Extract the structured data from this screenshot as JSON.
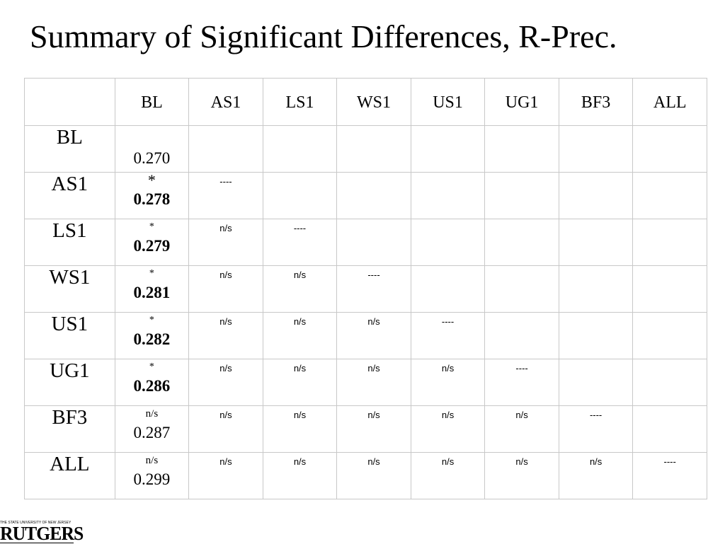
{
  "title": "Summary of Significant Differences, R-Prec.",
  "columns": [
    "BL",
    "AS1",
    "LS1",
    "WS1",
    "US1",
    "UG1",
    "BF3",
    "ALL"
  ],
  "rows": [
    {
      "label": "BL",
      "bl_mark": "",
      "bl_mark_style": "none",
      "bl_value": "0.270",
      "bl_bold": false,
      "pairs": []
    },
    {
      "label": "AS1",
      "bl_mark": "*",
      "bl_mark_style": "big",
      "bl_value": "0.278",
      "bl_bold": true,
      "pairs": [
        "----"
      ]
    },
    {
      "label": "LS1",
      "bl_mark": "*",
      "bl_mark_style": "small",
      "bl_value": "0.279",
      "bl_bold": true,
      "pairs": [
        "n/s",
        "----"
      ]
    },
    {
      "label": "WS1",
      "bl_mark": "*",
      "bl_mark_style": "small",
      "bl_value": "0.281",
      "bl_bold": true,
      "pairs": [
        "n/s",
        "n/s",
        "----"
      ]
    },
    {
      "label": "US1",
      "bl_mark": "*",
      "bl_mark_style": "small",
      "bl_value": "0.282",
      "bl_bold": true,
      "pairs": [
        "n/s",
        "n/s",
        "n/s",
        "----"
      ]
    },
    {
      "label": "UG1",
      "bl_mark": "*",
      "bl_mark_style": "small",
      "bl_value": "0.286",
      "bl_bold": true,
      "pairs": [
        "n/s",
        "n/s",
        "n/s",
        "n/s",
        "----"
      ]
    },
    {
      "label": "BF3",
      "bl_mark": "n/s",
      "bl_mark_style": "ns",
      "bl_value": "0.287",
      "bl_bold": false,
      "pairs": [
        "n/s",
        "n/s",
        "n/s",
        "n/s",
        "n/s",
        "----"
      ]
    },
    {
      "label": "ALL",
      "bl_mark": "n/s",
      "bl_mark_style": "ns",
      "bl_value": "0.299",
      "bl_bold": false,
      "pairs": [
        "n/s",
        "n/s",
        "n/s",
        "n/s",
        "n/s",
        "n/s",
        "----"
      ]
    }
  ],
  "logo": {
    "tagline": "THE STATE UNIVERSITY OF NEW JERSEY",
    "name": "RUTGERS"
  }
}
